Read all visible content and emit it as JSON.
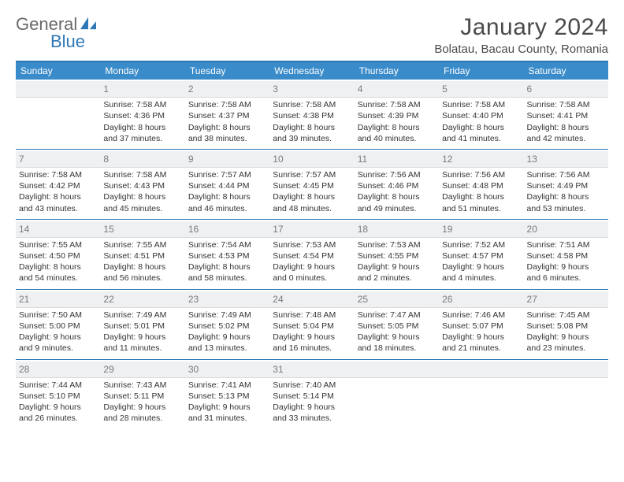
{
  "brand": {
    "part1": "General",
    "part2": "Blue"
  },
  "title": "January 2024",
  "location": "Bolatau, Bacau County, Romania",
  "colors": {
    "accent": "#2f78b7",
    "header_bg": "#3a8bc9",
    "daynum_bg": "#eef0f1",
    "text": "#333333",
    "muted": "#7b7b7b",
    "logo_gray": "#6a6a6a"
  },
  "weekdays": [
    "Sunday",
    "Monday",
    "Tuesday",
    "Wednesday",
    "Thursday",
    "Friday",
    "Saturday"
  ],
  "weeks": [
    [
      {
        "empty": true
      },
      {
        "n": "1",
        "sunrise": "Sunrise: 7:58 AM",
        "sunset": "Sunset: 4:36 PM",
        "day1": "Daylight: 8 hours",
        "day2": "and 37 minutes."
      },
      {
        "n": "2",
        "sunrise": "Sunrise: 7:58 AM",
        "sunset": "Sunset: 4:37 PM",
        "day1": "Daylight: 8 hours",
        "day2": "and 38 minutes."
      },
      {
        "n": "3",
        "sunrise": "Sunrise: 7:58 AM",
        "sunset": "Sunset: 4:38 PM",
        "day1": "Daylight: 8 hours",
        "day2": "and 39 minutes."
      },
      {
        "n": "4",
        "sunrise": "Sunrise: 7:58 AM",
        "sunset": "Sunset: 4:39 PM",
        "day1": "Daylight: 8 hours",
        "day2": "and 40 minutes."
      },
      {
        "n": "5",
        "sunrise": "Sunrise: 7:58 AM",
        "sunset": "Sunset: 4:40 PM",
        "day1": "Daylight: 8 hours",
        "day2": "and 41 minutes."
      },
      {
        "n": "6",
        "sunrise": "Sunrise: 7:58 AM",
        "sunset": "Sunset: 4:41 PM",
        "day1": "Daylight: 8 hours",
        "day2": "and 42 minutes."
      }
    ],
    [
      {
        "n": "7",
        "sunrise": "Sunrise: 7:58 AM",
        "sunset": "Sunset: 4:42 PM",
        "day1": "Daylight: 8 hours",
        "day2": "and 43 minutes."
      },
      {
        "n": "8",
        "sunrise": "Sunrise: 7:58 AM",
        "sunset": "Sunset: 4:43 PM",
        "day1": "Daylight: 8 hours",
        "day2": "and 45 minutes."
      },
      {
        "n": "9",
        "sunrise": "Sunrise: 7:57 AM",
        "sunset": "Sunset: 4:44 PM",
        "day1": "Daylight: 8 hours",
        "day2": "and 46 minutes."
      },
      {
        "n": "10",
        "sunrise": "Sunrise: 7:57 AM",
        "sunset": "Sunset: 4:45 PM",
        "day1": "Daylight: 8 hours",
        "day2": "and 48 minutes."
      },
      {
        "n": "11",
        "sunrise": "Sunrise: 7:56 AM",
        "sunset": "Sunset: 4:46 PM",
        "day1": "Daylight: 8 hours",
        "day2": "and 49 minutes."
      },
      {
        "n": "12",
        "sunrise": "Sunrise: 7:56 AM",
        "sunset": "Sunset: 4:48 PM",
        "day1": "Daylight: 8 hours",
        "day2": "and 51 minutes."
      },
      {
        "n": "13",
        "sunrise": "Sunrise: 7:56 AM",
        "sunset": "Sunset: 4:49 PM",
        "day1": "Daylight: 8 hours",
        "day2": "and 53 minutes."
      }
    ],
    [
      {
        "n": "14",
        "sunrise": "Sunrise: 7:55 AM",
        "sunset": "Sunset: 4:50 PM",
        "day1": "Daylight: 8 hours",
        "day2": "and 54 minutes."
      },
      {
        "n": "15",
        "sunrise": "Sunrise: 7:55 AM",
        "sunset": "Sunset: 4:51 PM",
        "day1": "Daylight: 8 hours",
        "day2": "and 56 minutes."
      },
      {
        "n": "16",
        "sunrise": "Sunrise: 7:54 AM",
        "sunset": "Sunset: 4:53 PM",
        "day1": "Daylight: 8 hours",
        "day2": "and 58 minutes."
      },
      {
        "n": "17",
        "sunrise": "Sunrise: 7:53 AM",
        "sunset": "Sunset: 4:54 PM",
        "day1": "Daylight: 9 hours",
        "day2": "and 0 minutes."
      },
      {
        "n": "18",
        "sunrise": "Sunrise: 7:53 AM",
        "sunset": "Sunset: 4:55 PM",
        "day1": "Daylight: 9 hours",
        "day2": "and 2 minutes."
      },
      {
        "n": "19",
        "sunrise": "Sunrise: 7:52 AM",
        "sunset": "Sunset: 4:57 PM",
        "day1": "Daylight: 9 hours",
        "day2": "and 4 minutes."
      },
      {
        "n": "20",
        "sunrise": "Sunrise: 7:51 AM",
        "sunset": "Sunset: 4:58 PM",
        "day1": "Daylight: 9 hours",
        "day2": "and 6 minutes."
      }
    ],
    [
      {
        "n": "21",
        "sunrise": "Sunrise: 7:50 AM",
        "sunset": "Sunset: 5:00 PM",
        "day1": "Daylight: 9 hours",
        "day2": "and 9 minutes."
      },
      {
        "n": "22",
        "sunrise": "Sunrise: 7:49 AM",
        "sunset": "Sunset: 5:01 PM",
        "day1": "Daylight: 9 hours",
        "day2": "and 11 minutes."
      },
      {
        "n": "23",
        "sunrise": "Sunrise: 7:49 AM",
        "sunset": "Sunset: 5:02 PM",
        "day1": "Daylight: 9 hours",
        "day2": "and 13 minutes."
      },
      {
        "n": "24",
        "sunrise": "Sunrise: 7:48 AM",
        "sunset": "Sunset: 5:04 PM",
        "day1": "Daylight: 9 hours",
        "day2": "and 16 minutes."
      },
      {
        "n": "25",
        "sunrise": "Sunrise: 7:47 AM",
        "sunset": "Sunset: 5:05 PM",
        "day1": "Daylight: 9 hours",
        "day2": "and 18 minutes."
      },
      {
        "n": "26",
        "sunrise": "Sunrise: 7:46 AM",
        "sunset": "Sunset: 5:07 PM",
        "day1": "Daylight: 9 hours",
        "day2": "and 21 minutes."
      },
      {
        "n": "27",
        "sunrise": "Sunrise: 7:45 AM",
        "sunset": "Sunset: 5:08 PM",
        "day1": "Daylight: 9 hours",
        "day2": "and 23 minutes."
      }
    ],
    [
      {
        "n": "28",
        "sunrise": "Sunrise: 7:44 AM",
        "sunset": "Sunset: 5:10 PM",
        "day1": "Daylight: 9 hours",
        "day2": "and 26 minutes."
      },
      {
        "n": "29",
        "sunrise": "Sunrise: 7:43 AM",
        "sunset": "Sunset: 5:11 PM",
        "day1": "Daylight: 9 hours",
        "day2": "and 28 minutes."
      },
      {
        "n": "30",
        "sunrise": "Sunrise: 7:41 AM",
        "sunset": "Sunset: 5:13 PM",
        "day1": "Daylight: 9 hours",
        "day2": "and 31 minutes."
      },
      {
        "n": "31",
        "sunrise": "Sunrise: 7:40 AM",
        "sunset": "Sunset: 5:14 PM",
        "day1": "Daylight: 9 hours",
        "day2": "and 33 minutes."
      },
      {
        "empty": true
      },
      {
        "empty": true
      },
      {
        "empty": true
      }
    ]
  ]
}
